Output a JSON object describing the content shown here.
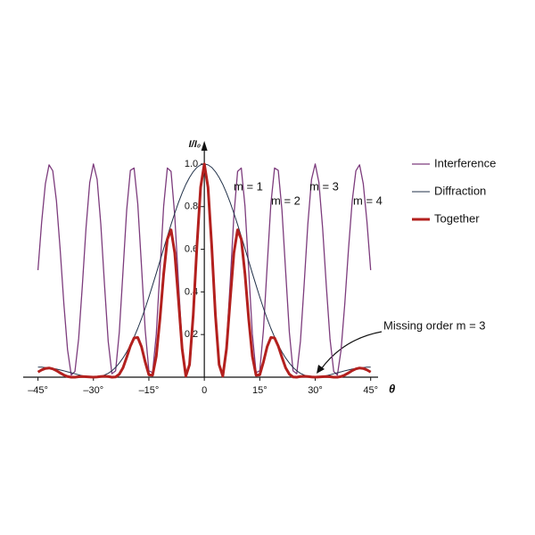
{
  "chart_data": {
    "type": "line",
    "x_label": "θ",
    "y_label": "I/I₀",
    "x": [
      -45,
      -44,
      -43,
      -42,
      -41,
      -40,
      -39,
      -38,
      -37,
      -36,
      -35,
      -34,
      -33,
      -32,
      -31,
      -30,
      -29,
      -28,
      -27,
      -26,
      -25,
      -24,
      -23,
      -22,
      -21,
      -20,
      -19,
      -18,
      -17,
      -16,
      -15,
      -14,
      -13,
      -12,
      -11,
      -10,
      -9,
      -8,
      -7,
      -6,
      -5,
      -4,
      -3,
      -2,
      -1,
      0,
      1,
      2,
      3,
      4,
      5,
      6,
      7,
      8,
      9,
      10,
      11,
      12,
      13,
      14,
      15,
      16,
      17,
      18,
      19,
      20,
      21,
      22,
      23,
      24,
      25,
      26,
      27,
      28,
      29,
      30,
      31,
      32,
      33,
      34,
      35,
      36,
      37,
      38,
      39,
      40,
      41,
      42,
      43,
      44,
      45
    ],
    "series": [
      {
        "name": "Interference",
        "color": "#7d3c7d",
        "width": 1.3,
        "values": [
          0.502,
          0.728,
          0.907,
          0.996,
          0.968,
          0.826,
          0.6,
          0.345,
          0.129,
          0.01,
          0.027,
          0.18,
          0.428,
          0.7,
          0.913,
          1,
          0.928,
          0.717,
          0.433,
          0.168,
          0.016,
          0.03,
          0.211,
          0.496,
          0.784,
          0.97,
          0.981,
          0.812,
          0.522,
          0.223,
          0.03,
          0.021,
          0.201,
          0.502,
          0.802,
          0.981,
          0.965,
          0.758,
          0.445,
          0.154,
          0.006,
          0.063,
          0.303,
          0.625,
          0.895,
          1,
          0.895,
          0.625,
          0.303,
          0.063,
          0.006,
          0.154,
          0.445,
          0.758,
          0.965,
          0.981,
          0.802,
          0.502,
          0.201,
          0.021,
          0.03,
          0.223,
          0.522,
          0.812,
          0.981,
          0.97,
          0.784,
          0.496,
          0.211,
          0.03,
          0.016,
          0.168,
          0.433,
          0.717,
          0.928,
          1,
          0.913,
          0.7,
          0.428,
          0.18,
          0.027,
          0.01,
          0.129,
          0.345,
          0.6,
          0.826,
          0.968,
          0.996,
          0.907,
          0.728,
          0.502
        ]
      },
      {
        "name": "Diffraction",
        "color": "#22324a",
        "width": 1,
        "values": [
          0.047,
          0.047,
          0.045,
          0.043,
          0.041,
          0.038,
          0.034,
          0.03,
          0.025,
          0.021,
          0.016,
          0.011,
          0.007,
          0.003,
          0.001,
          0,
          0.001,
          0.004,
          0.01,
          0.018,
          0.03,
          0.046,
          0.066,
          0.09,
          0.118,
          0.151,
          0.188,
          0.229,
          0.274,
          0.323,
          0.376,
          0.431,
          0.487,
          0.545,
          0.603,
          0.66,
          0.716,
          0.769,
          0.819,
          0.864,
          0.904,
          0.937,
          0.964,
          0.984,
          0.996,
          1,
          0.996,
          0.984,
          0.964,
          0.937,
          0.904,
          0.864,
          0.819,
          0.769,
          0.716,
          0.66,
          0.603,
          0.545,
          0.487,
          0.431,
          0.376,
          0.323,
          0.274,
          0.229,
          0.188,
          0.151,
          0.118,
          0.09,
          0.066,
          0.046,
          0.03,
          0.018,
          0.01,
          0.004,
          0.001,
          0,
          0.001,
          0.003,
          0.007,
          0.011,
          0.016,
          0.021,
          0.025,
          0.03,
          0.034,
          0.038,
          0.041,
          0.043,
          0.045,
          0.047,
          0.047
        ]
      },
      {
        "name": "Together",
        "color": "#b3201e",
        "width": 3,
        "values": [
          0.024,
          0.034,
          0.041,
          0.043,
          0.039,
          0.031,
          0.02,
          0.01,
          0.003,
          0,
          0,
          0.002,
          0.003,
          0.002,
          0.001,
          0,
          0.001,
          0.003,
          0.004,
          0.003,
          0,
          0.001,
          0.014,
          0.044,
          0.093,
          0.146,
          0.184,
          0.186,
          0.143,
          0.072,
          0.011,
          0.009,
          0.098,
          0.274,
          0.484,
          0.647,
          0.691,
          0.583,
          0.364,
          0.133,
          0.005,
          0.059,
          0.292,
          0.615,
          0.891,
          1,
          0.891,
          0.615,
          0.292,
          0.059,
          0.005,
          0.133,
          0.364,
          0.583,
          0.691,
          0.647,
          0.484,
          0.274,
          0.098,
          0.009,
          0.011,
          0.072,
          0.143,
          0.186,
          0.184,
          0.146,
          0.093,
          0.044,
          0.014,
          0.001,
          0,
          0.003,
          0.004,
          0.003,
          0.001,
          0,
          0.001,
          0.002,
          0.003,
          0.002,
          0,
          0,
          0.003,
          0.01,
          0.02,
          0.031,
          0.039,
          0.043,
          0.041,
          0.034,
          0.024
        ]
      }
    ],
    "xlim": [
      -49,
      47
    ],
    "ylim": [
      0,
      1.1
    ],
    "xticks": [
      {
        "value": -45,
        "label": "–45°"
      },
      {
        "value": -30,
        "label": "–30°"
      },
      {
        "value": -15,
        "label": "–15°"
      },
      {
        "value": 0,
        "label": "0"
      },
      {
        "value": 15,
        "label": "15°"
      },
      {
        "value": 30,
        "label": "30°"
      },
      {
        "value": 45,
        "label": "45°"
      }
    ],
    "yticks": [
      0.2,
      0.4,
      0.6,
      0.8,
      {
        "value": 1,
        "label": "1.0"
      }
    ],
    "legend": "right",
    "annotations": [
      "m = 1",
      "m = 2",
      "m = 3",
      "m = 4",
      "Missing order m = 3"
    ]
  }
}
